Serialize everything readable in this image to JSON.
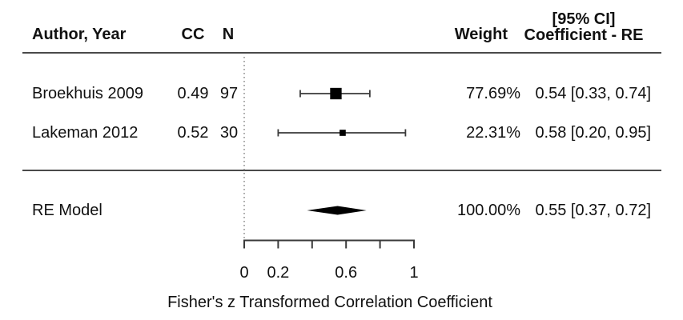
{
  "columns": {
    "author": "Author, Year",
    "cc": "CC",
    "n": "N",
    "weight": "Weight",
    "ci_line1": "[95% CI]",
    "ci_line2": "Coefficient - RE"
  },
  "rows": [
    {
      "author": "Broekhuis 2009",
      "cc": "0.49",
      "n": "97",
      "weight": "77.69%",
      "estimate_ci": "0.54 [0.33, 0.74]"
    },
    {
      "author": "Lakeman 2012",
      "cc": "0.52",
      "n": "30",
      "weight": "22.31%",
      "estimate_ci": "0.58 [0.20, 0.95]"
    }
  ],
  "summary_row": {
    "label": "RE Model",
    "weight": "100.00%",
    "estimate_ci": "0.55 [0.37, 0.72]"
  },
  "chart_data": {
    "type": "forest",
    "title": "",
    "xlabel": "Fisher's z Transformed Correlation Coefficient",
    "x_axis": {
      "min": 0,
      "max": 1,
      "ticks": [
        0,
        0.2,
        0.4,
        0.6,
        0.8,
        1
      ],
      "tick_labels": [
        "0",
        "0.2",
        "",
        "0.6",
        "",
        "1"
      ],
      "reference_line": 0
    },
    "studies": [
      {
        "label": "Broekhuis 2009",
        "cc": 0.49,
        "n": 97,
        "weight_pct": 77.69,
        "estimate": 0.54,
        "ci_lower": 0.33,
        "ci_upper": 0.74
      },
      {
        "label": "Lakeman 2012",
        "cc": 0.52,
        "n": 30,
        "weight_pct": 22.31,
        "estimate": 0.58,
        "ci_lower": 0.2,
        "ci_upper": 0.95
      }
    ],
    "summary": {
      "label": "RE Model",
      "weight_pct": 100.0,
      "estimate": 0.55,
      "ci_lower": 0.37,
      "ci_upper": 0.72
    },
    "colors": {
      "marker": "#000000",
      "line": "#3a3a3a",
      "rule": "#4a4a4a",
      "reference": "#808080",
      "text": "#111111"
    }
  }
}
